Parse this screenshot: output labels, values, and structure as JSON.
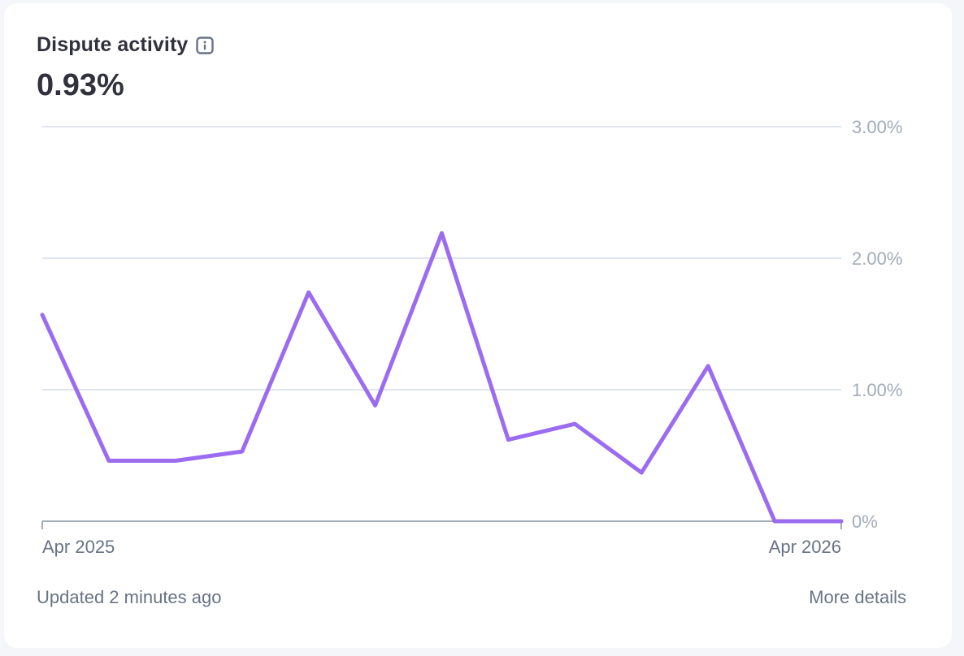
{
  "card": {
    "title": "Dispute activity",
    "info_icon": "info-icon",
    "metric_value": "0.93%",
    "footer_updated": "Updated 2 minutes ago",
    "footer_link": "More details"
  },
  "colors": {
    "line": "#9b6cf0",
    "grid": "#dfe5ee",
    "baseline": "#a3acb9",
    "text": "#30313d",
    "muted_text": "#687385"
  },
  "chart_data": {
    "type": "line",
    "title": "Dispute activity",
    "x_tick_labels": [
      "Apr 2025",
      "Apr 2026"
    ],
    "y_tick_labels": [
      "0%",
      "1.00%",
      "2.00%",
      "3.00%"
    ],
    "y_ticks": [
      0,
      1,
      2,
      3
    ],
    "ylim": [
      0,
      3
    ],
    "grid": true,
    "y_axis_position": "right",
    "series": [
      {
        "values": [
          1.57,
          0.46,
          0.46,
          0.53,
          1.74,
          0.88,
          2.19,
          0.62,
          0.74,
          0.37,
          1.18,
          0.0,
          0.0
        ]
      }
    ]
  }
}
